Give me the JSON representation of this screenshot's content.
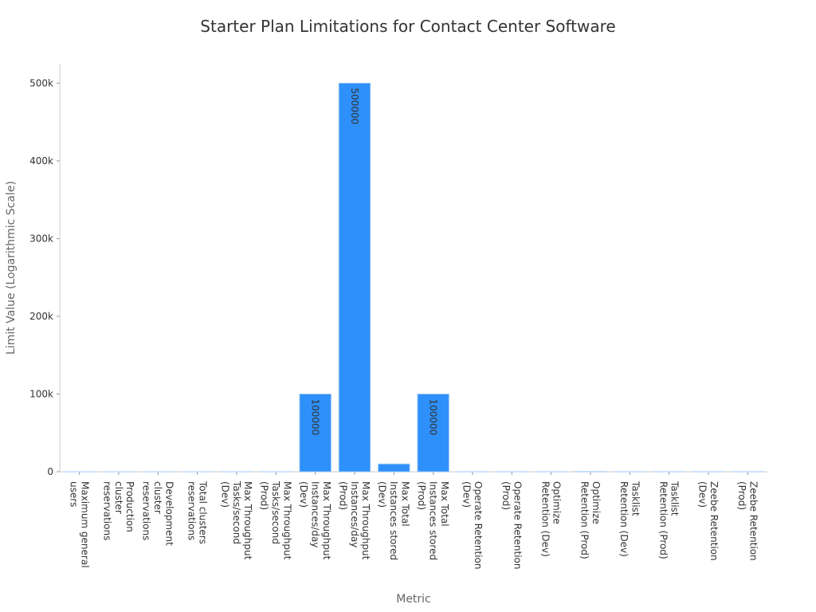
{
  "chart_data": {
    "type": "bar",
    "title": "Starter Plan Limitations for Contact Center Software",
    "x_label": "Metric",
    "y_label": "Limit Value (Logarithmic Scale)",
    "categories": [
      "Maximum general users",
      "Production cluster reservations",
      "Development cluster reservations",
      "Total clusters reservations",
      "Max Throughput Tasks/second (Dev)",
      "Max Throughput Tasks/second (Prod)",
      "Max Throughput Instances/day (Dev)",
      "Max Throughput Instances/day (Prod)",
      "Max Total Instances stored (Dev)",
      "Max Total Instances stored (Prod)",
      "Operate Retention (Dev)",
      "Operate Retention (Prod)",
      "Optimize Retention (Dev)",
      "Optimize Retention (Prod)",
      "Tasklist Retention (Dev)",
      "Tasklist Retention (Prod)",
      "Zeebe Retention (Dev)",
      "Zeebe Retention (Prod)"
    ],
    "values": [
      10,
      1,
      1,
      2,
      5,
      5,
      100000,
      500000,
      10000,
      100000,
      30,
      30,
      30,
      180,
      30,
      30,
      30,
      30
    ],
    "color": "#2e90fa",
    "ylim": [
      0,
      525000
    ],
    "yticks": [
      0,
      {
        "value": 100000,
        "label": "100k"
      },
      {
        "value": 200000,
        "label": "200k"
      },
      {
        "value": 300000,
        "label": "300k"
      },
      {
        "value": 400000,
        "label": "400k"
      },
      {
        "value": 500000,
        "label": "500k"
      }
    ]
  }
}
